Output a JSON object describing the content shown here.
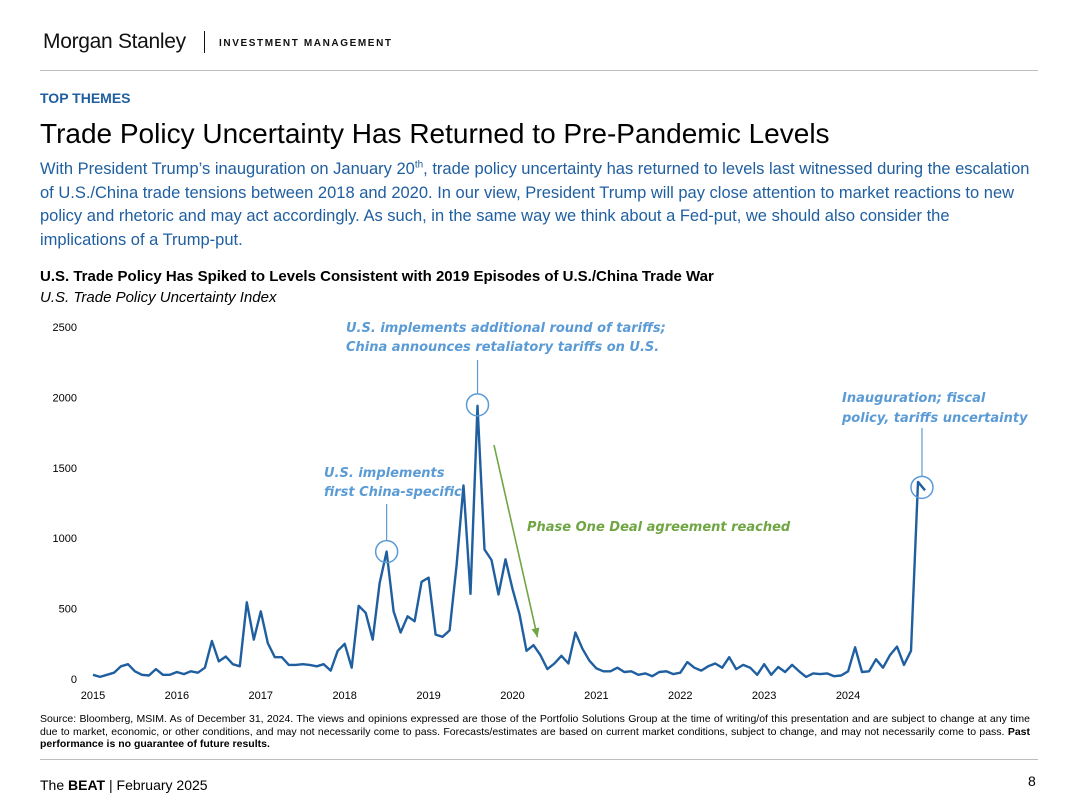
{
  "header": {
    "brand": "Morgan Stanley",
    "division": "INVESTMENT MANAGEMENT"
  },
  "section_label": "TOP THEMES",
  "title": "Trade Policy Uncertainty Has Returned to Pre-Pandemic Levels",
  "intro": {
    "before_sup": "With President Trump’s inauguration on January 20",
    "sup": "th",
    "after_sup": ", trade policy uncertainty has returned to levels last witnessed during the escalation of U.S./China trade tensions between 2018 and 2020. In our view, President Trump will pay close attention to market reactions to new policy and rhetoric and may act accordingly. As such, in the same way we think about a Fed-put, we should also consider the implications of a Trump-put."
  },
  "chart_data": {
    "type": "line",
    "title": "U.S. Trade Policy Has Spiked to Levels Consistent with 2019 Episodes of U.S./China Trade War",
    "subtitle": "U.S. Trade Policy Uncertainty Index",
    "xlabel": "",
    "ylabel": "",
    "ylim": [
      0,
      2500
    ],
    "xlim": [
      2015.0,
      2024.917
    ],
    "y_ticks": [
      0,
      500,
      1000,
      1500,
      2000,
      2500
    ],
    "x_ticks": [
      "2015",
      "2016",
      "2017",
      "2018",
      "2019",
      "2020",
      "2021",
      "2022",
      "2023",
      "2024"
    ],
    "grid": false,
    "legend": "none",
    "line_color": "#1f5fa0",
    "start": "2015-01",
    "frequency": "monthly",
    "series": [
      {
        "values": [
          30,
          15,
          30,
          45,
          90,
          105,
          55,
          30,
          25,
          70,
          30,
          30,
          50,
          35,
          55,
          45,
          80,
          270,
          125,
          160,
          105,
          90,
          545,
          280,
          480,
          255,
          155,
          155,
          100,
          100,
          105,
          100,
          90,
          105,
          60,
          200,
          250,
          80,
          520,
          470,
          280,
          680,
          905,
          480,
          330,
          445,
          410,
          690,
          720,
          315,
          300,
          345,
          810,
          1375,
          605,
          1940,
          920,
          845,
          600,
          850,
          640,
          460,
          200,
          240,
          170,
          70,
          110,
          165,
          110,
          330,
          215,
          130,
          75,
          55,
          55,
          80,
          50,
          55,
          30,
          40,
          20,
          50,
          55,
          35,
          45,
          120,
          80,
          60,
          90,
          110,
          80,
          155,
          70,
          100,
          80,
          30,
          105,
          30,
          85,
          50,
          100,
          55,
          15,
          40,
          35,
          40,
          20,
          25,
          55,
          225,
          50,
          55,
          140,
          80,
          170,
          230,
          100,
          200,
          1400,
          1340
        ]
      }
    ],
    "annotations": [
      {
        "lines": [
          "U.S. implements",
          "first China-specific"
        ],
        "target": "2018-07",
        "color": "#5b9bd5"
      },
      {
        "lines": [
          "U.S. implements additional round of tariffs;",
          "China announces retaliatory tariffs on U.S."
        ],
        "target": "2019-08",
        "color": "#5b9bd5"
      },
      {
        "lines": [
          "Phase One Deal agreement reached"
        ],
        "target": "2020-04",
        "color": "#70a544"
      },
      {
        "lines": [
          "Inauguration; fiscal",
          "policy, tariffs uncertainty"
        ],
        "target": "2024-12",
        "color": "#5b9bd5"
      }
    ]
  },
  "source": {
    "text": "Source: Bloomberg, MSIM. As of December 31, 2024. The views and opinions expressed are those of the Portfolio Solutions Group at the time of writing/of this presentation and are subject to change at any time due to market, economic, or other conditions, and may not necessarily come to pass. Forecasts/estimates are based on current market conditions, subject to change, and may not necessarily come to pass. ",
    "bold": "Past performance is no guarantee of future results."
  },
  "footer": {
    "brand_prefix": "The ",
    "brand_bold": "BEAT",
    "separator": " | ",
    "date": "February 2025",
    "page_number": "8"
  }
}
